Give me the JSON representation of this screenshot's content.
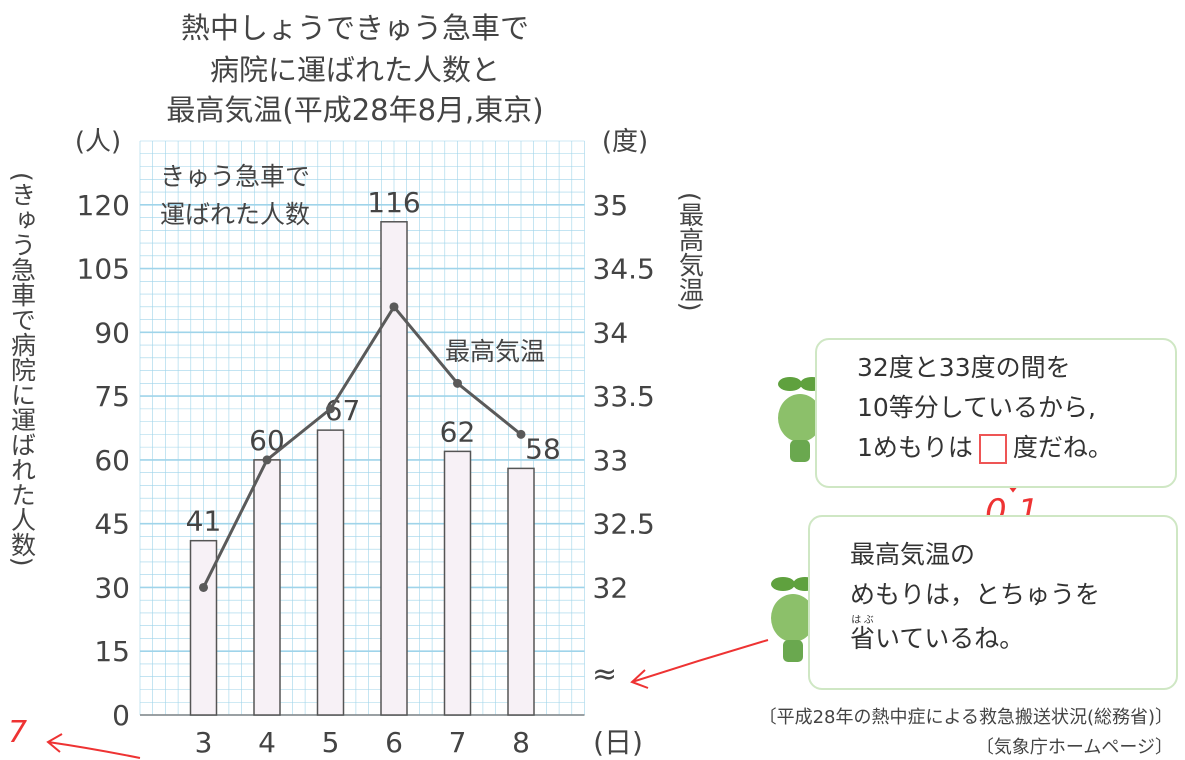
{
  "chart_data": {
    "type": "combo",
    "title": [
      "熱中しょうできゅう急車で",
      "病院に運ばれた人数と",
      "最高気温(平成28年8月,東京)"
    ],
    "y_unit": "(人)",
    "y2_unit": "(度)",
    "x_unit": "(日)",
    "y_label": "(きゅう急車で病院に運ばれた人数)",
    "y2_label": "(最高気温)",
    "categories": [
      "3",
      "4",
      "5",
      "6",
      "7",
      "8"
    ],
    "series": [
      {
        "name": "きゅう急車で運ばれた人数",
        "type": "bar",
        "color": "#f7f1f6",
        "values": [
          41,
          60,
          67,
          116,
          62,
          58
        ]
      },
      {
        "name": "最高気温",
        "type": "line",
        "axis": "y2",
        "color": "#5a5a5a",
        "values": [
          32,
          33,
          33.4,
          34.2,
          33.6,
          33.2
        ]
      }
    ],
    "ylim": [
      0,
      135
    ],
    "yticks": [
      0,
      15,
      30,
      45,
      60,
      75,
      90,
      105,
      120
    ],
    "y2lim": [
      31,
      35.5
    ],
    "y2ticks": [
      32,
      32.5,
      33,
      33.5,
      34,
      34.5,
      35
    ],
    "axis_break": "≈",
    "grid": true,
    "grid_color": "#9fd4ea"
  },
  "notes": [
    {
      "lines": [
        "32度と33度の間を",
        "10等分しているから,"
      ],
      "before_box": "1めもりは",
      "after_box": "度だね。"
    },
    {
      "lines": [
        "最高気温の",
        "めもりは，とちゅうを"
      ],
      "ruby_base": "省",
      "ruby_text": "はぶ",
      "after_ruby": "いているね。"
    }
  ],
  "handwriting": {
    "answer": "0.1",
    "margin": "7"
  },
  "sources": [
    "〔平成28年の熱中症による救急搬送状況(総務省)〕",
    "〔気象庁ホームページ〕"
  ]
}
